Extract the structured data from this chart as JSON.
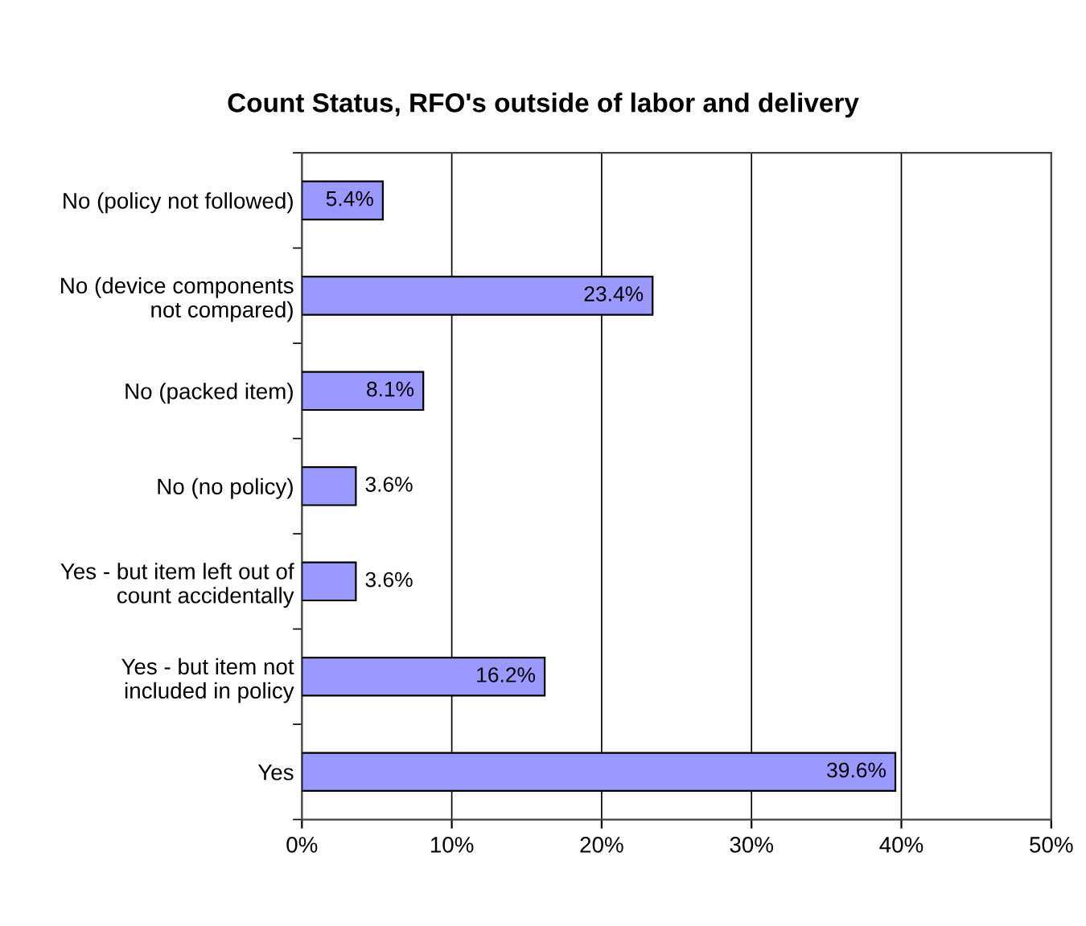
{
  "chart_data": {
    "type": "bar",
    "orientation": "horizontal",
    "title": "Count Status, RFO's outside of labor and delivery",
    "categories": [
      "No (policy not followed)",
      "No (device components\nnot compared)",
      "No (packed item)",
      "No (no policy)",
      "Yes - but item left out of\ncount accidentally",
      "Yes - but item not\nincluded in policy",
      "Yes"
    ],
    "values": [
      5.4,
      23.4,
      8.1,
      3.6,
      3.6,
      16.2,
      39.6
    ],
    "value_labels": [
      "5.4%",
      "23.4%",
      "8.1%",
      "3.6%",
      "3.6%",
      "16.2%",
      "39.6%"
    ],
    "color": "#9999ff",
    "xlim": [
      0,
      50
    ],
    "xticks": [
      {
        "value": 0,
        "label": "0%"
      },
      {
        "value": 10,
        "label": "10%"
      },
      {
        "value": 20,
        "label": "20%"
      },
      {
        "value": 30,
        "label": "30%"
      },
      {
        "value": 40,
        "label": "40%"
      },
      {
        "value": 50,
        "label": "50%"
      }
    ],
    "grid": "x",
    "legend": false
  }
}
